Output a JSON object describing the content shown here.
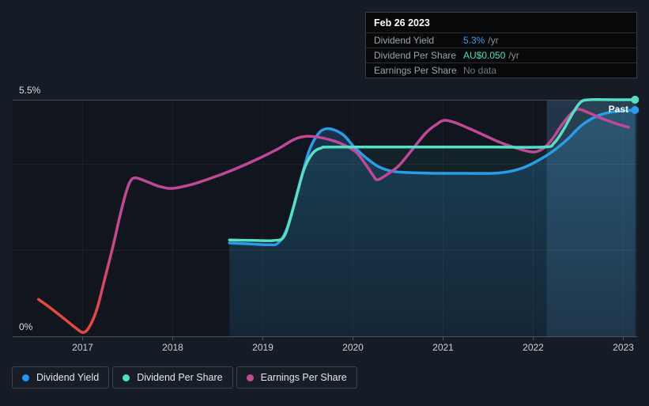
{
  "tooltip": {
    "date": "Feb 26 2023",
    "rows": [
      {
        "label": "Dividend Yield",
        "value": "5.3%",
        "suffix": "/yr",
        "value_color": "#36a2f5"
      },
      {
        "label": "Dividend Per Share",
        "value": "AU$0.050",
        "suffix": "/yr",
        "value_color": "#49e0c3"
      },
      {
        "label": "Earnings Per Share",
        "value": "No data",
        "suffix": "",
        "value_color": "#73787c"
      }
    ]
  },
  "legend": {
    "items": [
      {
        "label": "Dividend Yield",
        "color": "#2196f3"
      },
      {
        "label": "Dividend Per Share",
        "color": "#4ae2c7"
      },
      {
        "label": "Earnings Per Share",
        "color": "#c9498f"
      }
    ]
  },
  "chart_data": {
    "type": "line",
    "past_label": "Past",
    "x_axis": {
      "ticks": [
        2017,
        2018,
        2019,
        2020,
        2021,
        2022,
        2023
      ],
      "range": [
        2016.45,
        2023.15
      ]
    },
    "y_axis": {
      "max_label": "5.5%",
      "min_label": "0%",
      "range_pct": [
        0,
        5.5
      ],
      "minor_gridlines_pct": [
        2,
        4
      ]
    },
    "highlight_region": {
      "x_start": 2022.15,
      "x_end": 2023.15
    },
    "colors": {
      "dividend_yield": "#2b9ce8",
      "dividend_per_share": "#55dfc5",
      "earnings_per_share": "#c04896",
      "earnings_negative": "#e8473f",
      "highlight": "#5a96c8",
      "grid": "#4b5460"
    },
    "series": [
      {
        "name": "Dividend Yield",
        "key": "dividend_yield",
        "scale": "y_pct",
        "end_value": "5.3%",
        "fill": true,
        "end_marker": true,
        "points": [
          [
            2018.63,
            2.17
          ],
          [
            2018.85,
            2.15
          ],
          [
            2019.06,
            2.13
          ],
          [
            2019.17,
            2.17
          ],
          [
            2019.27,
            2.52
          ],
          [
            2019.39,
            3.4
          ],
          [
            2019.51,
            4.29
          ],
          [
            2019.61,
            4.69
          ],
          [
            2019.69,
            4.82
          ],
          [
            2019.79,
            4.8
          ],
          [
            2019.9,
            4.67
          ],
          [
            2020.01,
            4.41
          ],
          [
            2020.14,
            4.16
          ],
          [
            2020.28,
            3.95
          ],
          [
            2020.43,
            3.84
          ],
          [
            2020.58,
            3.81
          ],
          [
            2020.9,
            3.79
          ],
          [
            2021.25,
            3.79
          ],
          [
            2021.55,
            3.79
          ],
          [
            2021.73,
            3.83
          ],
          [
            2021.89,
            3.92
          ],
          [
            2022.04,
            4.07
          ],
          [
            2022.21,
            4.29
          ],
          [
            2022.38,
            4.58
          ],
          [
            2022.54,
            4.91
          ],
          [
            2022.72,
            5.13
          ],
          [
            2022.89,
            5.22
          ],
          [
            2023.13,
            5.26
          ]
        ]
      },
      {
        "name": "Dividend Per Share",
        "key": "dividend_per_share",
        "scale": "relative",
        "end_value": "AU$0.050",
        "fill": true,
        "end_marker": true,
        "points": [
          [
            2018.63,
            2.24
          ],
          [
            2018.89,
            2.23
          ],
          [
            2019.13,
            2.23
          ],
          [
            2019.24,
            2.34
          ],
          [
            2019.34,
            3.0
          ],
          [
            2019.45,
            3.84
          ],
          [
            2019.55,
            4.25
          ],
          [
            2019.65,
            4.38
          ],
          [
            2019.76,
            4.4
          ],
          [
            2020.5,
            4.4
          ],
          [
            2021.5,
            4.4
          ],
          [
            2022.12,
            4.4
          ],
          [
            2022.23,
            4.49
          ],
          [
            2022.33,
            4.78
          ],
          [
            2022.44,
            5.19
          ],
          [
            2022.53,
            5.45
          ],
          [
            2022.63,
            5.5
          ],
          [
            2022.9,
            5.5
          ],
          [
            2023.13,
            5.5
          ]
        ]
      },
      {
        "name": "Earnings Per Share",
        "key": "earnings_per_share",
        "scale": "relative",
        "end_value": "No data",
        "fill": false,
        "end_marker": false,
        "negative_until": 2017.2,
        "points": [
          [
            2016.51,
            0.86
          ],
          [
            2016.63,
            0.68
          ],
          [
            2016.79,
            0.42
          ],
          [
            2016.92,
            0.2
          ],
          [
            2017.01,
            0.09
          ],
          [
            2017.08,
            0.24
          ],
          [
            2017.16,
            0.64
          ],
          [
            2017.24,
            1.29
          ],
          [
            2017.34,
            2.12
          ],
          [
            2017.42,
            2.85
          ],
          [
            2017.49,
            3.4
          ],
          [
            2017.54,
            3.64
          ],
          [
            2017.6,
            3.68
          ],
          [
            2017.72,
            3.59
          ],
          [
            2017.86,
            3.48
          ],
          [
            2018.0,
            3.44
          ],
          [
            2018.21,
            3.53
          ],
          [
            2018.43,
            3.68
          ],
          [
            2018.68,
            3.88
          ],
          [
            2018.94,
            4.12
          ],
          [
            2019.17,
            4.36
          ],
          [
            2019.35,
            4.58
          ],
          [
            2019.48,
            4.65
          ],
          [
            2019.64,
            4.62
          ],
          [
            2019.79,
            4.54
          ],
          [
            2019.92,
            4.43
          ],
          [
            2020.04,
            4.27
          ],
          [
            2020.15,
            3.97
          ],
          [
            2020.22,
            3.75
          ],
          [
            2020.27,
            3.64
          ],
          [
            2020.37,
            3.75
          ],
          [
            2020.51,
            3.97
          ],
          [
            2020.65,
            4.32
          ],
          [
            2020.81,
            4.73
          ],
          [
            2020.93,
            4.93
          ],
          [
            2021.01,
            5.02
          ],
          [
            2021.13,
            4.97
          ],
          [
            2021.28,
            4.84
          ],
          [
            2021.46,
            4.67
          ],
          [
            2021.63,
            4.51
          ],
          [
            2021.81,
            4.38
          ],
          [
            2021.94,
            4.3
          ],
          [
            2022.03,
            4.29
          ],
          [
            2022.12,
            4.38
          ],
          [
            2022.21,
            4.58
          ],
          [
            2022.31,
            4.89
          ],
          [
            2022.41,
            5.15
          ],
          [
            2022.49,
            5.28
          ],
          [
            2022.59,
            5.22
          ],
          [
            2022.71,
            5.11
          ],
          [
            2022.82,
            5.02
          ],
          [
            2022.94,
            4.93
          ],
          [
            2023.06,
            4.86
          ]
        ]
      }
    ]
  }
}
